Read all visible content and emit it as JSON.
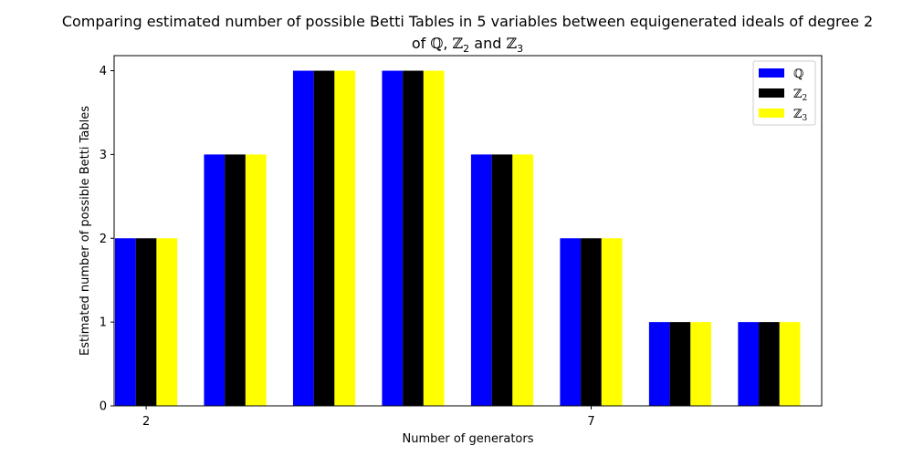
{
  "chart_data": {
    "type": "bar",
    "title_line1": "Comparing estimated number of possible Betti Tables in 5 variables between equigenerated ideals of degree 2",
    "title_line2_parts": [
      "of ",
      "ℚ",
      ", ",
      "ℤ",
      "2",
      " and  ",
      "ℤ",
      "3"
    ],
    "xlabel": "Number of generators",
    "ylabel": "Estimated number of  possible Betti Tables",
    "x": [
      2,
      3,
      4,
      5,
      6,
      7,
      8,
      9
    ],
    "xticks": [
      2,
      7
    ],
    "ylim": [
      0,
      4.18
    ],
    "yticks": [
      0,
      1,
      2,
      3,
      4
    ],
    "legend_position": "top-right",
    "series": [
      {
        "name_parts": [
          "ℚ",
          ""
        ],
        "color": "#0000ff",
        "values": [
          2,
          3,
          4,
          4,
          3,
          2,
          1,
          1
        ]
      },
      {
        "name_parts": [
          "ℤ",
          "2"
        ],
        "color": "#000000",
        "values": [
          2,
          3,
          4,
          4,
          3,
          2,
          1,
          1
        ]
      },
      {
        "name_parts": [
          "ℤ",
          "3"
        ],
        "color": "#ffff00",
        "values": [
          2,
          3,
          4,
          4,
          3,
          2,
          1,
          1
        ]
      }
    ]
  }
}
